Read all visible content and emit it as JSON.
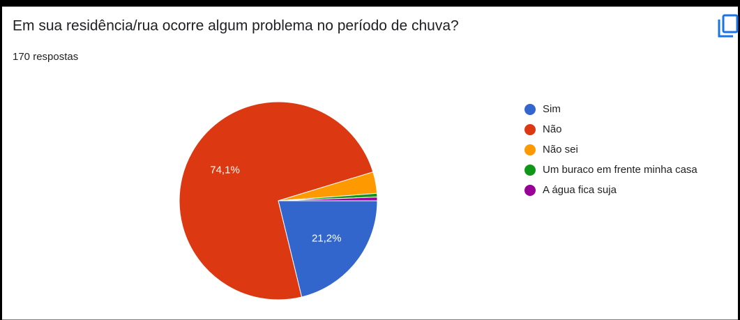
{
  "chart_data": {
    "type": "pie",
    "title": "Em sua residência/rua ocorre algum problema no período de chuva?",
    "subtitle": "170 respostas",
    "categories": [
      "Sim",
      "Não",
      "Não sei",
      "Um buraco em frente minha casa",
      "A água fica suja"
    ],
    "values": [
      21.2,
      74.1,
      3.5,
      0.6,
      0.6
    ],
    "value_labels": [
      "21,2%",
      "74,1%",
      null,
      null,
      null
    ],
    "colors": [
      "#3366cc",
      "#dc3912",
      "#ff9900",
      "#109618",
      "#990099"
    ],
    "legend": "right"
  }
}
